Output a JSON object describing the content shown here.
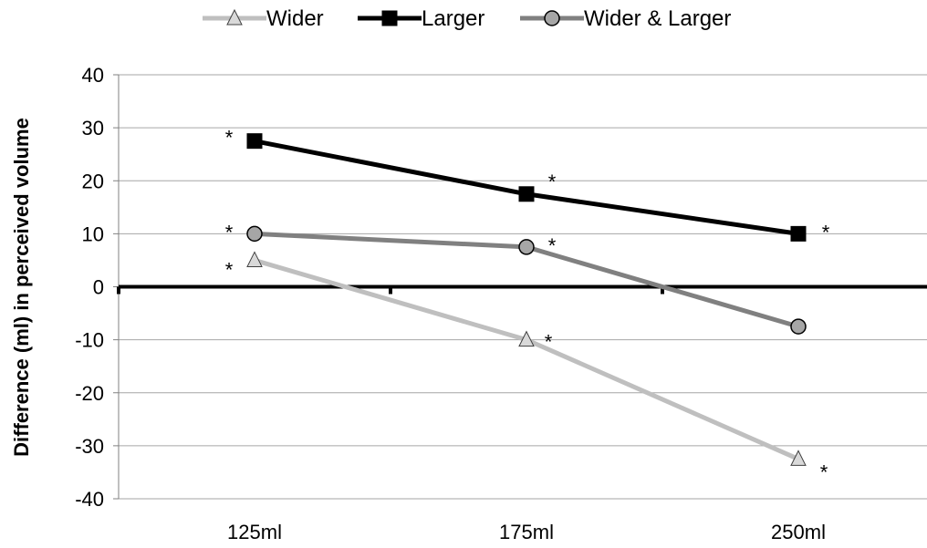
{
  "chart_data": {
    "type": "line",
    "title": "",
    "xlabel": "",
    "ylabel": "Difference (ml) in perceived volume",
    "categories": [
      "125ml",
      "175ml",
      "250ml"
    ],
    "ylim": [
      -40,
      40
    ],
    "yticks": [
      -40,
      -30,
      -20,
      -10,
      0,
      10,
      20,
      30,
      40
    ],
    "grid": true,
    "legend_position": "top",
    "series": [
      {
        "name": "Wider",
        "values": [
          5,
          -10,
          -32.5
        ],
        "color": "#bfbfbf",
        "marker": "triangle",
        "marker_fill": "#d9d9d9",
        "significance": [
          "*",
          "*",
          "*"
        ]
      },
      {
        "name": "Larger",
        "values": [
          27.5,
          17.5,
          10
        ],
        "color": "#000000",
        "marker": "square",
        "marker_fill": "#000000",
        "significance": [
          "*",
          "*",
          "*"
        ]
      },
      {
        "name": "Wider & Larger",
        "values": [
          10,
          7.5,
          -7.5
        ],
        "color": "#808080",
        "marker": "circle",
        "marker_fill": "#a6a6a6",
        "significance": [
          "*",
          "*",
          ""
        ]
      }
    ]
  }
}
